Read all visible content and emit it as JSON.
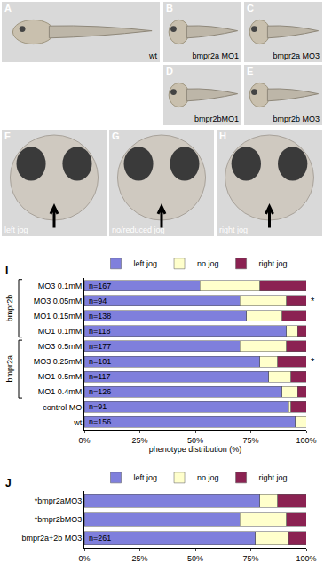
{
  "panels": [
    {
      "letter": "A",
      "label": "wt"
    },
    {
      "letter": "B",
      "label": "bmpr2a MO1"
    },
    {
      "letter": "C",
      "label": "bmpr2a MO3"
    },
    {
      "letter": "D",
      "label": "bmpr2bMO1"
    },
    {
      "letter": "E",
      "label": "bmpr2b MO3"
    },
    {
      "letter": "F",
      "label": "left jog"
    },
    {
      "letter": "G",
      "label": "no/reduced jog"
    },
    {
      "letter": "H",
      "label": "right jog"
    }
  ],
  "chart_data": [
    {
      "panel": "I",
      "type": "bar",
      "orientation": "horizontal",
      "stacked": true,
      "categories": [
        "MO3 0.1mM",
        "MO3 0.05mM",
        "MO1 0.15mM",
        "MO1 0.1mM",
        "MO3 0.5mM",
        "MO3 0.25mM",
        "MO1 0.5mM",
        "MO1 0.4mM",
        "control MO",
        "wt"
      ],
      "series": [
        {
          "name": "left jog",
          "color": "#7f7fdc",
          "values": [
            52,
            70,
            73,
            91,
            70,
            79,
            83,
            89,
            92,
            95
          ]
        },
        {
          "name": "no jog",
          "color": "#ffffcc",
          "values": [
            27,
            21,
            16,
            5,
            21,
            8,
            10,
            7,
            1,
            5
          ]
        },
        {
          "name": "right jog",
          "color": "#8b2252",
          "values": [
            21,
            9,
            11,
            4,
            9,
            13,
            7,
            4,
            7,
            0
          ]
        }
      ],
      "n_labels": [
        "n=167",
        "n=94",
        "n=138",
        "n=118",
        "n=177",
        "n=101",
        "n=117",
        "n=126",
        "n=91",
        "n=156"
      ],
      "marks": [
        null,
        "*",
        null,
        null,
        null,
        "*",
        null,
        null,
        null,
        null
      ],
      "groups": [
        {
          "label": "bmpr2b",
          "from": 0,
          "to": 3
        },
        {
          "label": "bmpr2a",
          "from": 4,
          "to": 7
        }
      ],
      "x_label": "phenotype distribution (%)",
      "xlim": [
        0,
        100
      ],
      "xticks": [
        {
          "value": 0,
          "label": "0%"
        },
        {
          "value": 25,
          "label": "25%"
        },
        {
          "value": 50,
          "label": "50%"
        },
        {
          "value": 75,
          "label": "75%"
        },
        {
          "value": 100,
          "label": "100%"
        }
      ],
      "legend": "top",
      "grid": false
    },
    {
      "panel": "J",
      "type": "bar",
      "orientation": "horizontal",
      "stacked": true,
      "categories": [
        "*bmpr2aMO3",
        "*bmpr2bMO3",
        "bmpr2a+2b MO3"
      ],
      "series": [
        {
          "name": "left jog",
          "color": "#7f7fdc",
          "values": [
            79,
            70,
            77
          ]
        },
        {
          "name": "no jog",
          "color": "#ffffcc",
          "values": [
            8,
            21,
            15
          ]
        },
        {
          "name": "right jog",
          "color": "#8b2252",
          "values": [
            13,
            9,
            8
          ]
        }
      ],
      "n_labels": [
        null,
        null,
        "n=261"
      ],
      "xlim": [
        0,
        100
      ],
      "xticks": [
        {
          "value": 0,
          "label": "0%"
        },
        {
          "value": 25,
          "label": "25%"
        },
        {
          "value": 50,
          "label": "50%"
        },
        {
          "value": 75,
          "label": "75%"
        },
        {
          "value": 100,
          "label": "100%"
        }
      ],
      "legend": "top",
      "grid": false
    }
  ]
}
